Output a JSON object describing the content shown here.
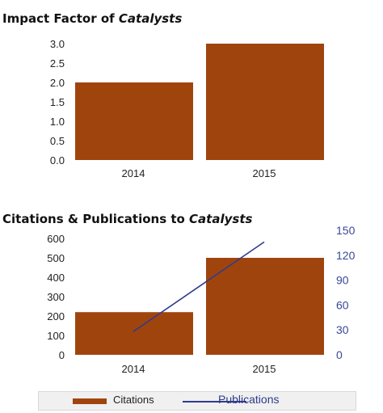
{
  "colors": {
    "bar": "#a0440e",
    "line": "#2f3b8c",
    "right_axis_text": "#3a4896",
    "axis_text": "#222222"
  },
  "chart1": {
    "title_prefix": "Impact Factor of ",
    "title_italic": "Catalysts"
  },
  "chart2": {
    "title_prefix": "Citations & Publications to ",
    "title_italic": "Catalysts"
  },
  "legend": {
    "citations": "Citations",
    "publications": "Publications"
  },
  "chart_data": [
    {
      "type": "bar",
      "categories": [
        "2014",
        "2015"
      ],
      "values": [
        2.0,
        3.0
      ],
      "ylim": [
        0,
        3.0
      ],
      "yticks": [
        "0.0",
        "0.5",
        "1.0",
        "1.5",
        "2.0",
        "2.5",
        "3.0"
      ],
      "grid": false
    },
    {
      "type": "bar+line",
      "categories": [
        "2014",
        "2015"
      ],
      "series": [
        {
          "name": "Citations",
          "type": "bar",
          "axis": "left",
          "values": [
            220,
            500
          ]
        },
        {
          "name": "Publications",
          "type": "line",
          "axis": "right",
          "values": [
            28,
            136
          ]
        }
      ],
      "ylim_left": [
        0,
        600
      ],
      "yticks_left": [
        "0",
        "100",
        "200",
        "300",
        "400",
        "500",
        "600"
      ],
      "ylim_right": [
        0,
        150
      ],
      "yticks_right": [
        "0",
        "30",
        "60",
        "90",
        "120",
        "150"
      ],
      "legend_position": "bottom",
      "grid": false
    }
  ]
}
